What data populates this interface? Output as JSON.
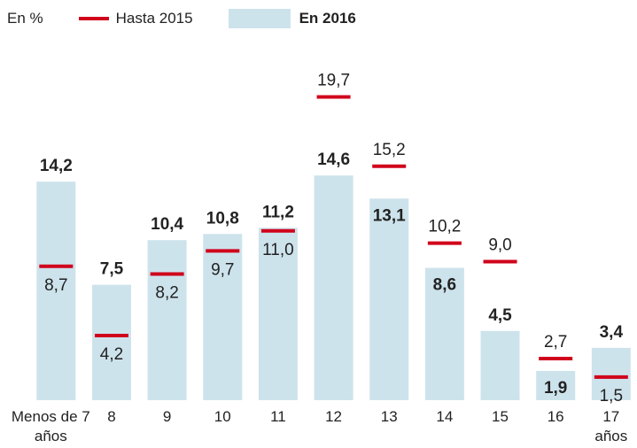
{
  "chart_data": {
    "type": "bar",
    "subtitle": "En %",
    "categories": [
      "Menos de 7 años",
      "8",
      "9",
      "10",
      "11",
      "12",
      "13",
      "14",
      "15",
      "16",
      "17 años"
    ],
    "series": [
      {
        "name": "Hasta 2015",
        "color": "#d0021b",
        "values": [
          8.7,
          4.2,
          8.2,
          9.7,
          11.0,
          19.7,
          15.2,
          10.2,
          9.0,
          2.7,
          1.5
        ],
        "value_labels": [
          "8,7",
          "4,2",
          "8,2",
          "9,7",
          "11,0",
          "19,7",
          "15,2",
          "10,2",
          "9,0",
          "2,7",
          "1,5"
        ]
      },
      {
        "name": "En 2016",
        "color": "#cde3ec",
        "values": [
          14.2,
          7.5,
          10.4,
          10.8,
          11.2,
          14.6,
          13.1,
          8.6,
          4.5,
          1.9,
          3.4
        ],
        "value_labels": [
          "14,2",
          "7,5",
          "10,4",
          "10,8",
          "11,2",
          "14,6",
          "13,1",
          "8,6",
          "4,5",
          "1,9",
          "3,4"
        ]
      }
    ],
    "ylim": [
      0,
      26
    ]
  }
}
